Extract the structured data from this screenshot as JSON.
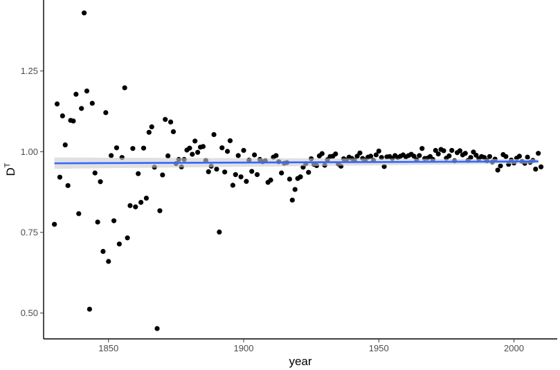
{
  "chart_data": {
    "type": "scatter",
    "xlabel": "year",
    "ylabel": {
      "base": "D",
      "superscript": "T"
    },
    "xlim": [
      1826,
      2016
    ],
    "ylim": [
      0.42,
      1.47
    ],
    "xticks": [
      1850,
      1900,
      1950,
      2000
    ],
    "xtick_labels": [
      "1850",
      "1900",
      "1950",
      "2000"
    ],
    "yticks": [
      0.5,
      0.75,
      1.0,
      1.25
    ],
    "ytick_labels": [
      "0.50",
      "0.75",
      "1.00",
      "1.25"
    ],
    "grid": false,
    "legend": "none",
    "trend": {
      "x": [
        1830,
        2009
      ],
      "y": [
        0.964,
        0.97
      ],
      "band_lower": [
        0.947,
        0.963
      ],
      "band_upper": [
        0.982,
        0.977
      ],
      "color": "#3366ff",
      "band_color": "#cccccc"
    },
    "point_color": "#000000",
    "points": [
      [
        1830,
        0.775
      ],
      [
        1831,
        1.148
      ],
      [
        1832,
        0.921
      ],
      [
        1833,
        1.111
      ],
      [
        1834,
        1.021
      ],
      [
        1835,
        0.895
      ],
      [
        1836,
        1.097
      ],
      [
        1837,
        1.095
      ],
      [
        1838,
        1.178
      ],
      [
        1839,
        0.808
      ],
      [
        1840,
        1.134
      ],
      [
        1841,
        1.43
      ],
      [
        1842,
        1.188
      ],
      [
        1843,
        0.512
      ],
      [
        1844,
        1.15
      ],
      [
        1845,
        0.934
      ],
      [
        1846,
        0.782
      ],
      [
        1847,
        0.907
      ],
      [
        1848,
        0.691
      ],
      [
        1849,
        1.121
      ],
      [
        1850,
        0.66
      ],
      [
        1851,
        0.988
      ],
      [
        1852,
        0.786
      ],
      [
        1853,
        1.012
      ],
      [
        1854,
        0.714
      ],
      [
        1855,
        0.982
      ],
      [
        1856,
        1.198
      ],
      [
        1857,
        0.733
      ],
      [
        1858,
        0.833
      ],
      [
        1859,
        1.01
      ],
      [
        1860,
        0.829
      ],
      [
        1861,
        0.932
      ],
      [
        1862,
        0.843
      ],
      [
        1863,
        1.011
      ],
      [
        1864,
        0.856
      ],
      [
        1865,
        1.06
      ],
      [
        1866,
        1.077
      ],
      [
        1867,
        0.952
      ],
      [
        1868,
        0.452
      ],
      [
        1869,
        0.817
      ],
      [
        1870,
        0.928
      ],
      [
        1871,
        1.1
      ],
      [
        1872,
        0.987
      ],
      [
        1873,
        1.092
      ],
      [
        1874,
        1.062
      ],
      [
        1875,
        0.963
      ],
      [
        1876,
        0.976
      ],
      [
        1877,
        0.953
      ],
      [
        1878,
        0.976
      ],
      [
        1879,
        1.005
      ],
      [
        1880,
        1.011
      ],
      [
        1881,
        0.992
      ],
      [
        1882,
        1.033
      ],
      [
        1883,
        0.998
      ],
      [
        1884,
        1.014
      ],
      [
        1885,
        1.016
      ],
      [
        1886,
        0.973
      ],
      [
        1887,
        0.938
      ],
      [
        1888,
        0.955
      ],
      [
        1889,
        1.053
      ],
      [
        1890,
        0.946
      ],
      [
        1891,
        0.751
      ],
      [
        1892,
        1.012
      ],
      [
        1893,
        0.937
      ],
      [
        1894,
        1.001
      ],
      [
        1895,
        1.034
      ],
      [
        1896,
        0.896
      ],
      [
        1897,
        0.929
      ],
      [
        1898,
        0.988
      ],
      [
        1899,
        0.922
      ],
      [
        1900,
        1.004
      ],
      [
        1901,
        0.908
      ],
      [
        1902,
        0.974
      ],
      [
        1903,
        0.939
      ],
      [
        1904,
        0.99
      ],
      [
        1905,
        0.929
      ],
      [
        1906,
        0.976
      ],
      [
        1907,
        0.969
      ],
      [
        1908,
        0.972
      ],
      [
        1909,
        0.905
      ],
      [
        1910,
        0.912
      ],
      [
        1911,
        0.983
      ],
      [
        1912,
        0.988
      ],
      [
        1913,
        0.969
      ],
      [
        1914,
        0.934
      ],
      [
        1915,
        0.964
      ],
      [
        1916,
        0.966
      ],
      [
        1917,
        0.915
      ],
      [
        1918,
        0.85
      ],
      [
        1919,
        0.883
      ],
      [
        1920,
        0.917
      ],
      [
        1921,
        0.922
      ],
      [
        1922,
        0.952
      ],
      [
        1923,
        0.963
      ],
      [
        1924,
        0.936
      ],
      [
        1925,
        0.978
      ],
      [
        1926,
        0.961
      ],
      [
        1927,
        0.957
      ],
      [
        1928,
        0.987
      ],
      [
        1929,
        0.994
      ],
      [
        1930,
        0.958
      ],
      [
        1931,
        0.975
      ],
      [
        1932,
        0.985
      ],
      [
        1933,
        0.986
      ],
      [
        1934,
        0.993
      ],
      [
        1935,
        0.962
      ],
      [
        1936,
        0.955
      ],
      [
        1937,
        0.978
      ],
      [
        1938,
        0.974
      ],
      [
        1939,
        0.983
      ],
      [
        1940,
        0.979
      ],
      [
        1941,
        0.973
      ],
      [
        1942,
        0.986
      ],
      [
        1943,
        0.996
      ],
      [
        1944,
        0.979
      ],
      [
        1945,
        0.974
      ],
      [
        1946,
        0.983
      ],
      [
        1947,
        0.986
      ],
      [
        1948,
        0.973
      ],
      [
        1949,
        0.99
      ],
      [
        1950,
        1.002
      ],
      [
        1951,
        0.982
      ],
      [
        1952,
        0.954
      ],
      [
        1953,
        0.984
      ],
      [
        1954,
        0.985
      ],
      [
        1955,
        0.979
      ],
      [
        1956,
        0.988
      ],
      [
        1957,
        0.982
      ],
      [
        1958,
        0.986
      ],
      [
        1959,
        0.99
      ],
      [
        1960,
        0.984
      ],
      [
        1961,
        0.988
      ],
      [
        1962,
        0.992
      ],
      [
        1963,
        0.986
      ],
      [
        1964,
        0.975
      ],
      [
        1965,
        0.988
      ],
      [
        1966,
        1.01
      ],
      [
        1967,
        0.979
      ],
      [
        1968,
        0.98
      ],
      [
        1969,
        0.985
      ],
      [
        1970,
        0.976
      ],
      [
        1971,
        1.004
      ],
      [
        1972,
        0.993
      ],
      [
        1973,
        1.007
      ],
      [
        1974,
        1.003
      ],
      [
        1975,
        0.98
      ],
      [
        1976,
        0.987
      ],
      [
        1977,
        1.004
      ],
      [
        1978,
        0.972
      ],
      [
        1979,
        0.997
      ],
      [
        1980,
        1.003
      ],
      [
        1981,
        0.99
      ],
      [
        1982,
        0.995
      ],
      [
        1983,
        0.973
      ],
      [
        1984,
        0.982
      ],
      [
        1985,
        0.999
      ],
      [
        1986,
        0.989
      ],
      [
        1987,
        0.978
      ],
      [
        1988,
        0.985
      ],
      [
        1989,
        0.982
      ],
      [
        1990,
        0.972
      ],
      [
        1991,
        0.985
      ],
      [
        1992,
        0.968
      ],
      [
        1993,
        0.977
      ],
      [
        1994,
        0.943
      ],
      [
        1995,
        0.956
      ],
      [
        1996,
        0.991
      ],
      [
        1997,
        0.985
      ],
      [
        1998,
        0.961
      ],
      [
        1999,
        0.974
      ],
      [
        2000,
        0.965
      ],
      [
        2001,
        0.98
      ],
      [
        2002,
        0.986
      ],
      [
        2003,
        0.97
      ],
      [
        2004,
        0.964
      ],
      [
        2005,
        0.983
      ],
      [
        2006,
        0.967
      ],
      [
        2007,
        0.973
      ],
      [
        2008,
        0.946
      ],
      [
        2009,
        0.995
      ],
      [
        2010,
        0.953
      ]
    ]
  }
}
